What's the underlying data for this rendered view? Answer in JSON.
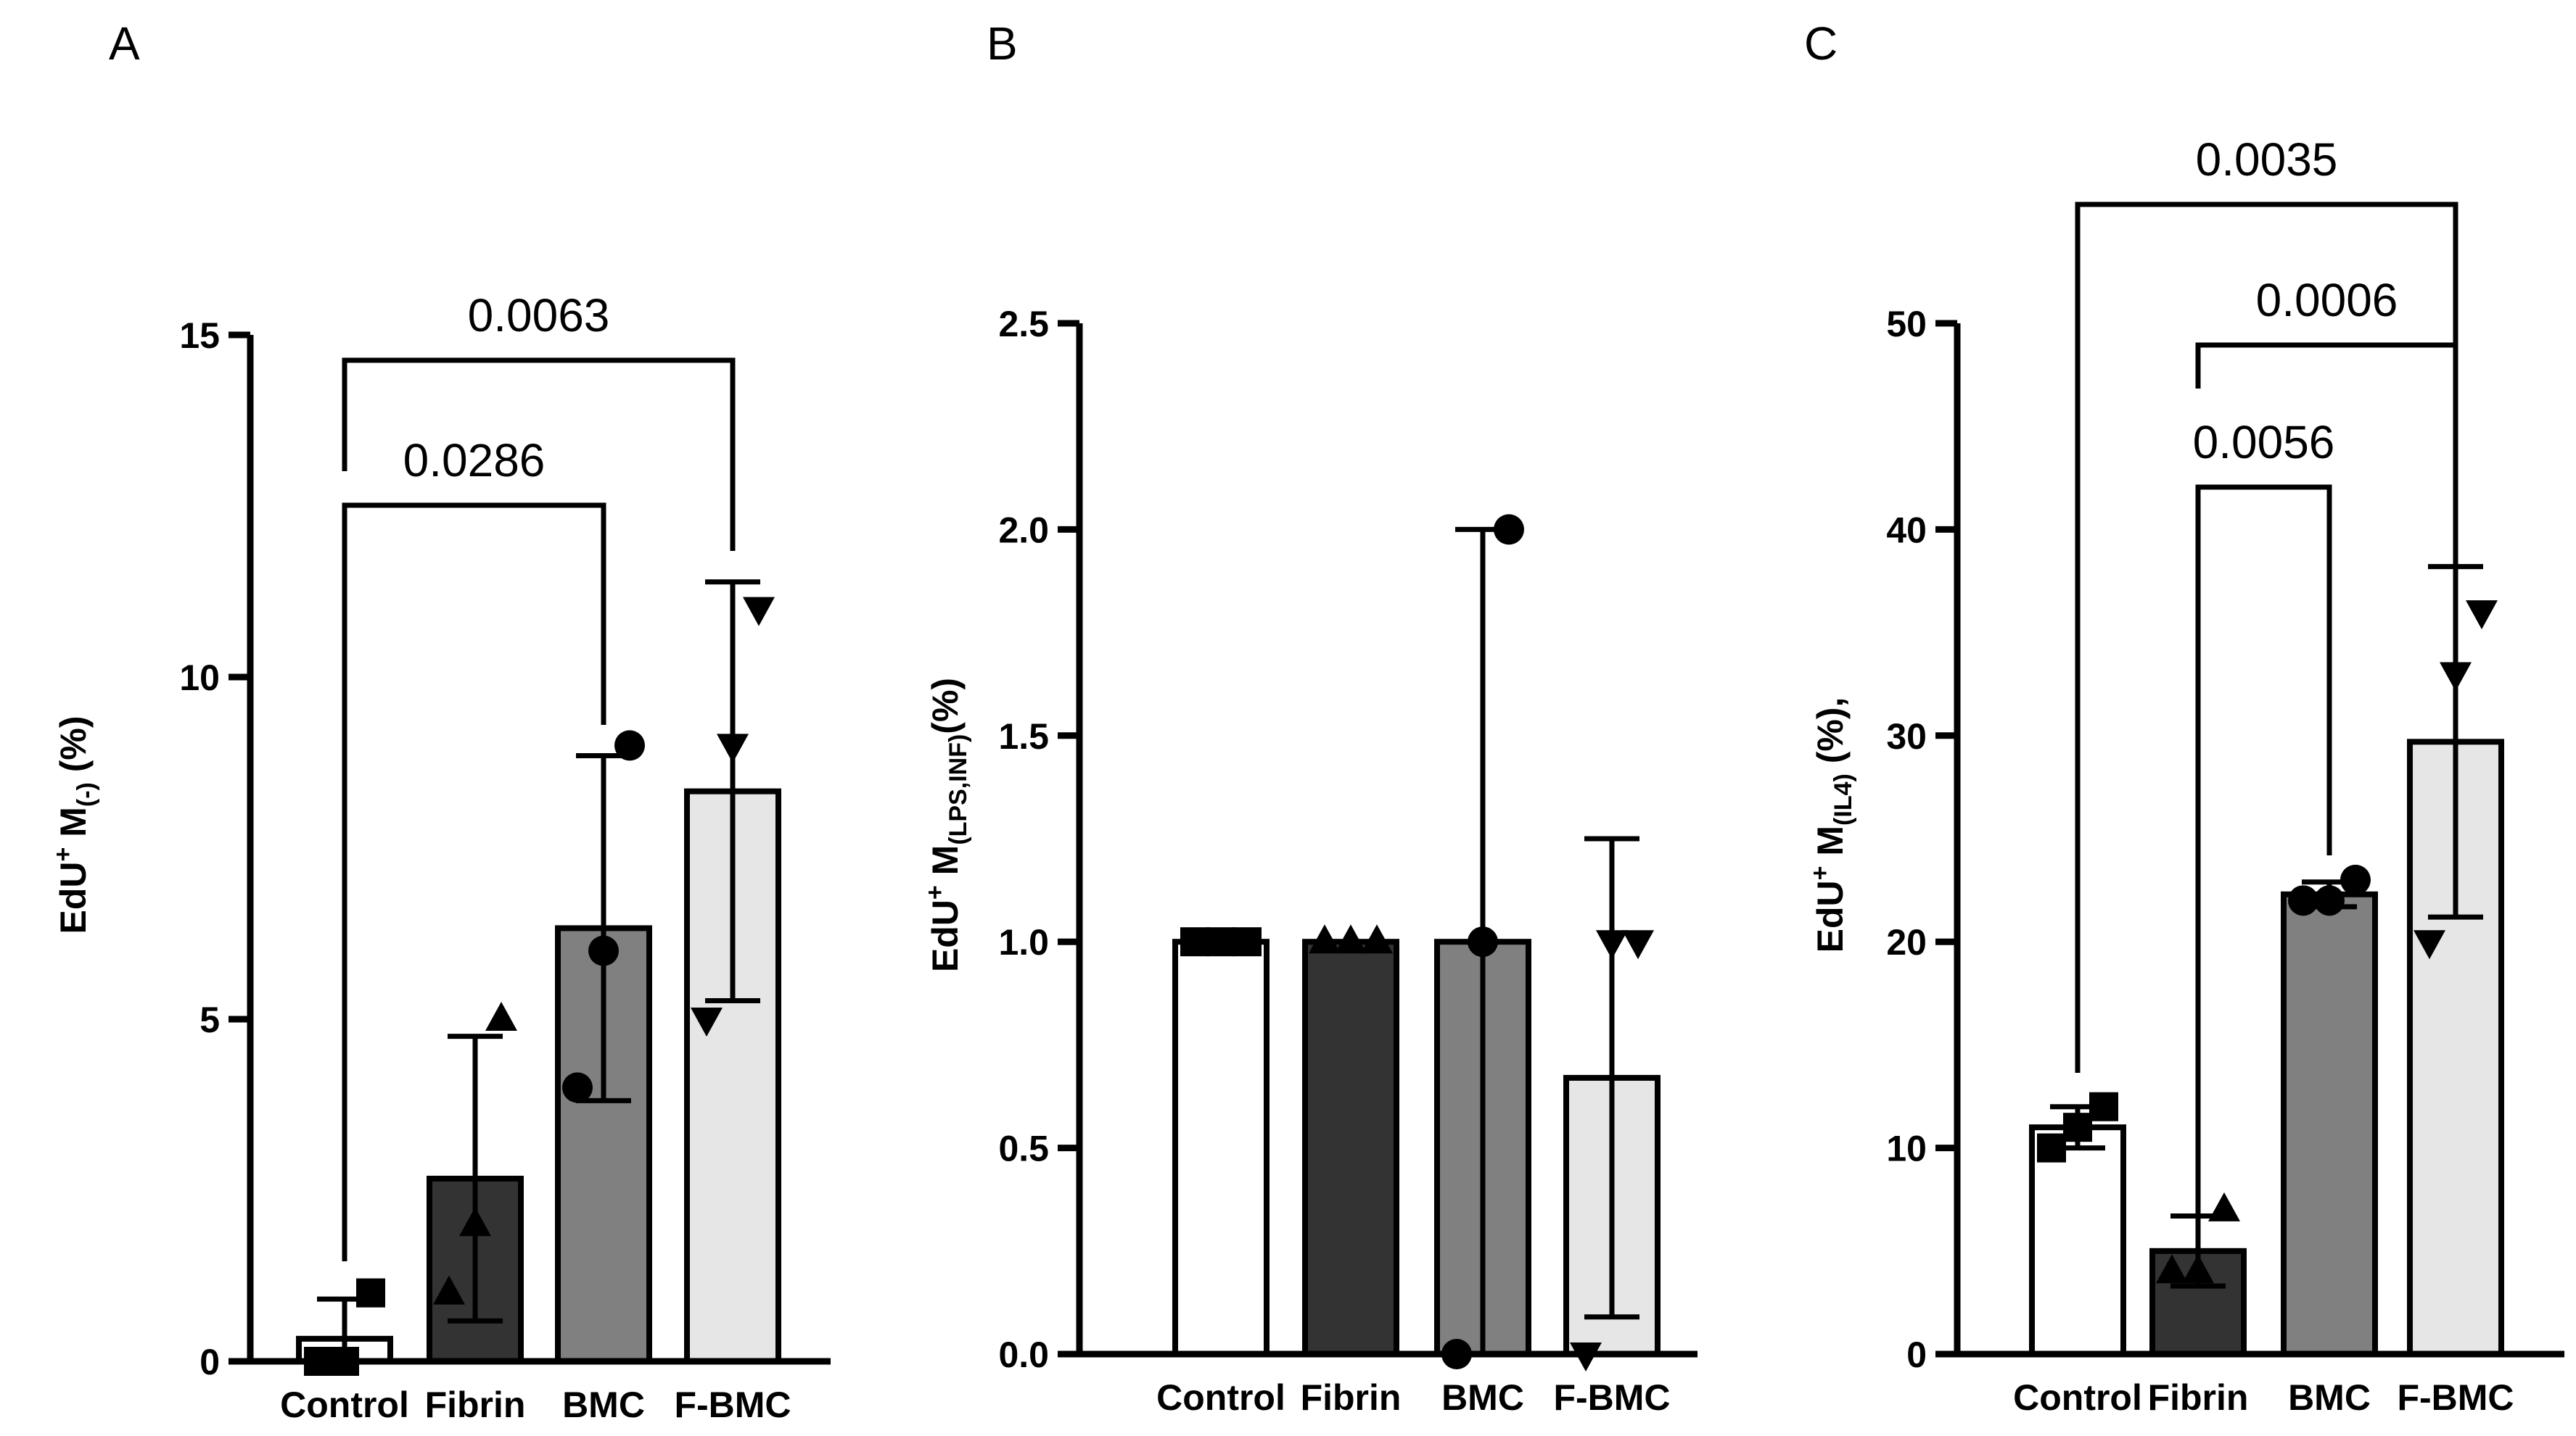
{
  "panels": [
    {
      "letter": "A",
      "ylabel": {
        "pre": "EdU",
        "sup": "+",
        "mid": " M",
        "sub": "(-)",
        "post": " (%)"
      },
      "chart_data": {
        "type": "bar",
        "categories": [
          "Control",
          "Fibrin",
          "BMC",
          "F-BMC"
        ],
        "values": [
          0.33,
          2.67,
          6.33,
          8.33
        ],
        "error": [
          0.58,
          2.08,
          2.52,
          3.06
        ],
        "points": [
          [
            0,
            0,
            1
          ],
          [
            1,
            2,
            5
          ],
          [
            4,
            6,
            9
          ],
          [
            5,
            9,
            11
          ]
        ],
        "markers": [
          "square",
          "triangle-up",
          "circle",
          "triangle-down"
        ],
        "fills": [
          "#ffffff",
          "#333333",
          "#808080",
          "#e6e6e6"
        ],
        "ylim": [
          0,
          15
        ],
        "yticks": [
          "0",
          "5",
          "10",
          "15"
        ],
        "ytick_values": [
          0,
          5,
          10,
          15
        ],
        "comparisons": [
          {
            "from": 0,
            "to": 2,
            "label": "0.0286",
            "level": 0
          },
          {
            "from": 0,
            "to": 3,
            "label": "0.0063",
            "level": 1
          }
        ]
      }
    },
    {
      "letter": "B",
      "ylabel": {
        "pre": "EdU",
        "sup": "+",
        "mid": " M",
        "sub": "(LPS,INF)",
        "post": "(%)"
      },
      "chart_data": {
        "type": "bar",
        "categories": [
          "Control",
          "Fibrin",
          "BMC",
          "F-BMC"
        ],
        "values": [
          1.0,
          1.0,
          1.0,
          0.67
        ],
        "error": [
          0.0,
          0.0,
          1.0,
          0.58
        ],
        "points": [
          [
            1,
            1,
            1
          ],
          [
            1,
            1,
            1
          ],
          [
            0,
            1,
            2
          ],
          [
            0,
            1,
            1
          ]
        ],
        "markers": [
          "square",
          "triangle-up",
          "circle",
          "triangle-down"
        ],
        "fills": [
          "#ffffff",
          "#333333",
          "#808080",
          "#e6e6e6"
        ],
        "ylim": [
          0,
          2.5
        ],
        "yticks": [
          "0.0",
          "0.5",
          "1.0",
          "1.5",
          "2.0",
          "2.5"
        ],
        "ytick_values": [
          0,
          0.5,
          1.0,
          1.5,
          2.0,
          2.5
        ],
        "comparisons": []
      }
    },
    {
      "letter": "C",
      "ylabel": {
        "pre": "EdU",
        "sup": "+",
        "mid": " M",
        "sub": "(IL4)",
        "post": " (%),"
      },
      "chart_data": {
        "type": "bar",
        "categories": [
          "Control",
          "Fibrin",
          "BMC",
          "F-BMC"
        ],
        "values": [
          11.0,
          5.0,
          22.3,
          29.7
        ],
        "error": [
          1.0,
          1.7,
          0.6,
          8.5
        ],
        "points": [
          [
            10,
            11,
            12
          ],
          [
            4,
            4,
            7
          ],
          [
            22,
            22,
            23
          ],
          [
            20,
            33,
            36
          ]
        ],
        "markers": [
          "square",
          "triangle-up",
          "circle",
          "triangle-down"
        ],
        "fills": [
          "#ffffff",
          "#333333",
          "#808080",
          "#e6e6e6"
        ],
        "ylim": [
          0,
          50
        ],
        "yticks": [
          "0",
          "10",
          "20",
          "30",
          "40",
          "50"
        ],
        "ytick_values": [
          0,
          10,
          20,
          30,
          40,
          50
        ],
        "comparisons": [
          {
            "from": 1,
            "to": 2,
            "label": "0.0056",
            "level": 0
          },
          {
            "from": 1,
            "to": 3,
            "label": "0.0006",
            "level": 1
          },
          {
            "from": 0,
            "to": 3,
            "label": "0.0035",
            "level": 2
          }
        ]
      }
    }
  ]
}
